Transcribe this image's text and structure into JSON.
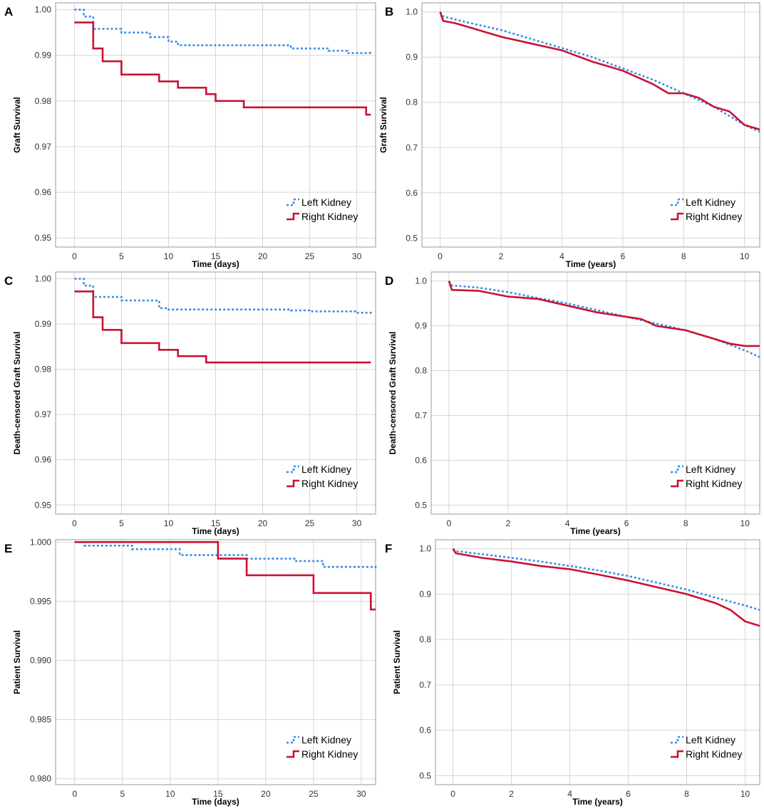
{
  "colors": {
    "left": "#3a8de0",
    "right": "#cc1133",
    "grid": "#d6d6d6",
    "frame": "#9a9a9a"
  },
  "legend": {
    "left": "Left Kidney",
    "right": "Right Kidney"
  },
  "chart_data": [
    {
      "panel": "A",
      "type": "line",
      "step": true,
      "ylabel": "Graft Survival",
      "xlabel": "Time (days)",
      "xlim": [
        -2,
        32
      ],
      "ylim": [
        0.948,
        1.0015
      ],
      "xticks": [
        0,
        5,
        10,
        15,
        20,
        25,
        30
      ],
      "yticks": [
        0.95,
        0.96,
        0.97,
        0.98,
        0.99,
        1.0
      ],
      "ytick_labels": [
        "0.95",
        "0.96",
        "0.97",
        "0.98",
        "0.99",
        "1.00"
      ],
      "legend_position": "bottom-right",
      "series": [
        {
          "name": "Left Kidney",
          "x": [
            0,
            1,
            2,
            5,
            8,
            10,
            11,
            20,
            23,
            25,
            27,
            29,
            31.5
          ],
          "y": [
            1.0,
            0.9985,
            0.9958,
            0.995,
            0.994,
            0.993,
            0.9922,
            0.9922,
            0.9915,
            0.9915,
            0.991,
            0.9905,
            0.9902
          ]
        },
        {
          "name": "Right Kidney",
          "x": [
            0,
            2,
            3,
            5,
            9,
            11,
            14,
            15,
            18,
            20,
            25,
            31,
            31.5
          ],
          "y": [
            0.9972,
            0.9915,
            0.9887,
            0.9858,
            0.9843,
            0.9829,
            0.9815,
            0.98,
            0.9786,
            0.9786,
            0.9786,
            0.977,
            0.977
          ]
        }
      ]
    },
    {
      "panel": "B",
      "type": "line",
      "step": false,
      "ylabel": "Graft Survival",
      "xlabel": "Time (years)",
      "xlim": [
        -0.6,
        10.5
      ],
      "ylim": [
        0.48,
        1.02
      ],
      "xticks": [
        0,
        2,
        4,
        6,
        8,
        10
      ],
      "yticks": [
        0.5,
        0.6,
        0.7,
        0.8,
        0.9,
        1.0
      ],
      "ytick_labels": [
        "0.5",
        "0.6",
        "0.7",
        "0.8",
        "0.9",
        "1.0"
      ],
      "legend_position": "bottom-right",
      "series": [
        {
          "name": "Left Kidney",
          "x": [
            0,
            0.1,
            1,
            2,
            3,
            4,
            5,
            6,
            7,
            8,
            9,
            10,
            10.5
          ],
          "y": [
            1.0,
            0.99,
            0.975,
            0.96,
            0.94,
            0.92,
            0.9,
            0.875,
            0.85,
            0.82,
            0.79,
            0.75,
            0.735
          ]
        },
        {
          "name": "Right Kidney",
          "x": [
            0,
            0.1,
            0.5,
            1,
            2,
            3,
            4,
            5,
            5.5,
            6,
            7,
            7.5,
            8,
            8.5,
            9,
            9.5,
            10,
            10.5
          ],
          "y": [
            1.0,
            0.98,
            0.975,
            0.965,
            0.945,
            0.93,
            0.915,
            0.89,
            0.88,
            0.87,
            0.84,
            0.82,
            0.82,
            0.81,
            0.79,
            0.78,
            0.75,
            0.74
          ]
        }
      ]
    },
    {
      "panel": "C",
      "type": "line",
      "step": true,
      "ylabel": "Death-censored Graft Survival",
      "xlabel": "Time (days)",
      "xlim": [
        -2,
        32
      ],
      "ylim": [
        0.948,
        1.0015
      ],
      "xticks": [
        0,
        5,
        10,
        15,
        20,
        25,
        30
      ],
      "yticks": [
        0.95,
        0.96,
        0.97,
        0.98,
        0.99,
        1.0
      ],
      "ytick_labels": [
        "0.95",
        "0.96",
        "0.97",
        "0.98",
        "0.99",
        "1.00"
      ],
      "legend_position": "bottom-right",
      "series": [
        {
          "name": "Left Kidney",
          "x": [
            0,
            1,
            2,
            5,
            9,
            10,
            20,
            23,
            25,
            30,
            31.5
          ],
          "y": [
            1.0,
            0.9985,
            0.996,
            0.9952,
            0.9935,
            0.9932,
            0.9932,
            0.993,
            0.9928,
            0.9925,
            0.9922
          ]
        },
        {
          "name": "Right Kidney",
          "x": [
            0,
            2,
            3,
            5,
            9,
            11,
            14,
            31.5
          ],
          "y": [
            0.9972,
            0.9915,
            0.9887,
            0.9858,
            0.9843,
            0.9829,
            0.9815,
            0.9815
          ]
        }
      ]
    },
    {
      "panel": "D",
      "type": "line",
      "step": false,
      "ylabel": "Death-censored Graft Survival",
      "xlabel": "Time (years)",
      "xlim": [
        -0.6,
        10.5
      ],
      "ylim": [
        0.48,
        1.02
      ],
      "xticks": [
        0,
        2,
        4,
        6,
        8,
        10
      ],
      "yticks": [
        0.5,
        0.6,
        0.7,
        0.8,
        0.9,
        1.0
      ],
      "ytick_labels": [
        "0.5",
        "0.6",
        "0.7",
        "0.8",
        "0.9",
        "1.0"
      ],
      "legend_position": "bottom-right",
      "series": [
        {
          "name": "Left Kidney",
          "x": [
            0,
            0.1,
            1,
            2,
            3,
            4,
            5,
            6,
            7,
            8,
            9,
            10,
            10.5
          ],
          "y": [
            1.0,
            0.99,
            0.985,
            0.975,
            0.962,
            0.95,
            0.935,
            0.92,
            0.905,
            0.89,
            0.87,
            0.845,
            0.83
          ]
        },
        {
          "name": "Right Kidney",
          "x": [
            0,
            0.1,
            1,
            2,
            3,
            4,
            5,
            6,
            6.5,
            7,
            8,
            9,
            9.5,
            10,
            10.5
          ],
          "y": [
            1.0,
            0.98,
            0.978,
            0.965,
            0.96,
            0.945,
            0.93,
            0.92,
            0.915,
            0.9,
            0.89,
            0.87,
            0.86,
            0.855,
            0.855
          ]
        }
      ]
    },
    {
      "panel": "E",
      "type": "line",
      "step": true,
      "ylabel": "Patient Survival",
      "xlabel": "Time (days)",
      "xlim": [
        -2,
        31.5
      ],
      "ylim": [
        0.9795,
        1.0002
      ],
      "xticks": [
        0,
        5,
        10,
        15,
        20,
        25,
        30
      ],
      "yticks": [
        0.98,
        0.985,
        0.99,
        0.995,
        1.0
      ],
      "ytick_labels": [
        "0.980",
        "0.985",
        "0.990",
        "0.995",
        "1.000"
      ],
      "legend_position": "bottom-right",
      "series": [
        {
          "name": "Left Kidney",
          "x": [
            0,
            1,
            6,
            11,
            18,
            23,
            26,
            31.5
          ],
          "y": [
            1.0,
            0.9997,
            0.9994,
            0.9989,
            0.9986,
            0.9984,
            0.9979,
            0.9976
          ]
        },
        {
          "name": "Right Kidney",
          "x": [
            0,
            15,
            18,
            25,
            31,
            31.5
          ],
          "y": [
            1.0,
            0.9986,
            0.9972,
            0.9957,
            0.9943,
            0.9943
          ]
        }
      ]
    },
    {
      "panel": "F",
      "type": "line",
      "step": false,
      "ylabel": "Patient Survival",
      "xlabel": "Time (years)",
      "xlim": [
        -0.6,
        10.5
      ],
      "ylim": [
        0.48,
        1.02
      ],
      "xticks": [
        0,
        2,
        4,
        6,
        8,
        10
      ],
      "yticks": [
        0.5,
        0.6,
        0.7,
        0.8,
        0.9,
        1.0
      ],
      "ytick_labels": [
        "0.5",
        "0.6",
        "0.7",
        "0.8",
        "0.9",
        "1.0"
      ],
      "legend_position": "bottom-right",
      "series": [
        {
          "name": "Left Kidney",
          "x": [
            0,
            0.1,
            1,
            2,
            3,
            4,
            5,
            6,
            7,
            8,
            9,
            10,
            10.5
          ],
          "y": [
            1.0,
            0.995,
            0.988,
            0.98,
            0.972,
            0.962,
            0.952,
            0.94,
            0.925,
            0.91,
            0.892,
            0.875,
            0.865
          ]
        },
        {
          "name": "Right Kidney",
          "x": [
            0,
            0.1,
            1,
            2,
            3,
            4,
            5,
            6,
            7,
            8,
            8.5,
            9,
            9.5,
            10,
            10.5
          ],
          "y": [
            1.0,
            0.99,
            0.98,
            0.972,
            0.962,
            0.955,
            0.943,
            0.93,
            0.915,
            0.9,
            0.89,
            0.88,
            0.865,
            0.84,
            0.83
          ]
        }
      ]
    }
  ]
}
